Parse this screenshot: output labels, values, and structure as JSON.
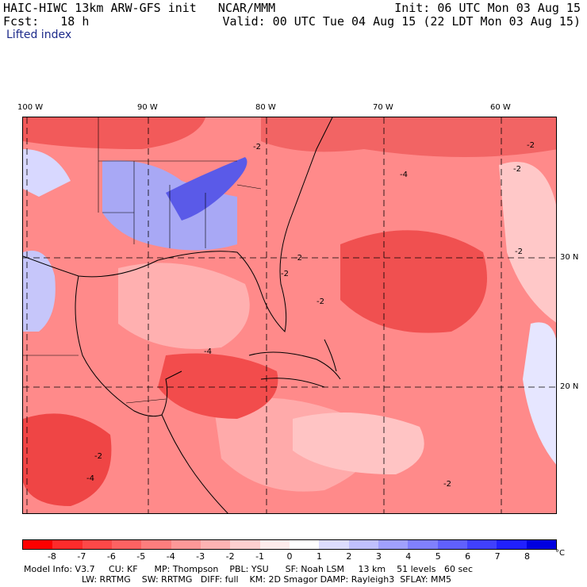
{
  "header": {
    "model_title": "HAIC-HIWC 13km ARW-GFS init   NCAR/MMM",
    "forecast": "Fcst:   18 h",
    "init": "Init: 06 UTC Mon 03 Aug 15",
    "valid": "Valid: 00 UTC Tue 04 Aug 15 (22 LDT Mon 03 Aug 15)"
  },
  "field_name": "Lifted index",
  "axes": {
    "longitude_labels": [
      "100 W",
      "90 W",
      "80 W",
      "70 W",
      "60 W"
    ],
    "latitude_labels": [
      "30 N",
      "20 N"
    ]
  },
  "contour_labels": [
    "-2",
    "-4",
    "-2",
    "-2",
    "-2",
    "-2",
    "-2",
    "-4",
    "-2",
    "-2",
    "-2",
    "-4"
  ],
  "colorbar": {
    "labels": [
      "-8",
      "-7",
      "-6",
      "-5",
      "-4",
      "-3",
      "-2",
      "-1",
      "0",
      "1",
      "2",
      "3",
      "4",
      "5",
      "6",
      "7",
      "8"
    ],
    "unit": "°C",
    "colors": [
      "#ff0000",
      "#ff2b2b",
      "#ff4848",
      "#ff6262",
      "#ff7d7d",
      "#ff9898",
      "#ffb3b3",
      "#ffcfcf",
      "#ffebeb",
      "#ffffff",
      "#dcdcff",
      "#c0c0ff",
      "#a0a0ff",
      "#8080ff",
      "#6060ff",
      "#4040ff",
      "#2020ff",
      "#0000e0"
    ]
  },
  "model_info": {
    "line1": "Model Info: V3.7     CU: KF      MP: Thompson    PBL: YSU      SF: Noah LSM     13 km    51 levels   60 sec",
    "line2": "LW: RRTMG    SW: RRTMG   DIFF: full    KM: 2D Smagor DAMP: Rayleigh3  SFLAY: MM5"
  },
  "map_colors": {
    "land_blue": "#8f8ff2",
    "deep_blue": "#4a4ae6",
    "sea_red": "#ff7272",
    "deep_red": "#ef3a3a",
    "pale": "#ffd0d0"
  }
}
